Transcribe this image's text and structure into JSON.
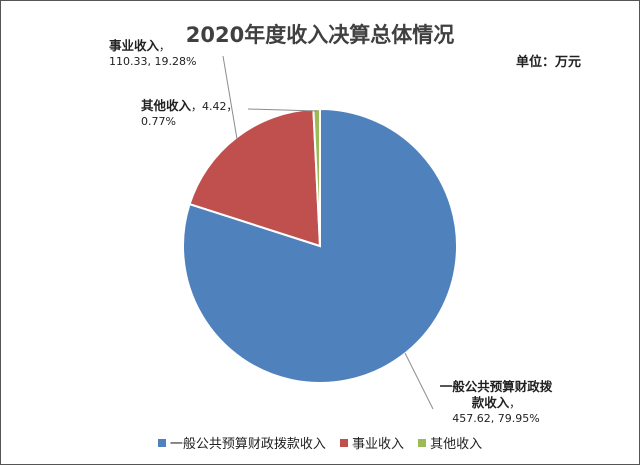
{
  "chart_data": {
    "type": "pie",
    "title": "2020年度收入决算总体情况",
    "unit_label": "单位：万元",
    "categories": [
      "一般公共预算财政拨款收入",
      "事业收入",
      "其他收入"
    ],
    "values": [
      457.62,
      110.33,
      4.42
    ],
    "percent_labels": [
      "79.95%",
      "19.28%",
      "0.77%"
    ],
    "value_labels": [
      "457.62",
      "110.33",
      "4.42"
    ],
    "colors": [
      "#4f81bd",
      "#c0504d",
      "#9bbb59"
    ],
    "legend_position": "bottom"
  }
}
